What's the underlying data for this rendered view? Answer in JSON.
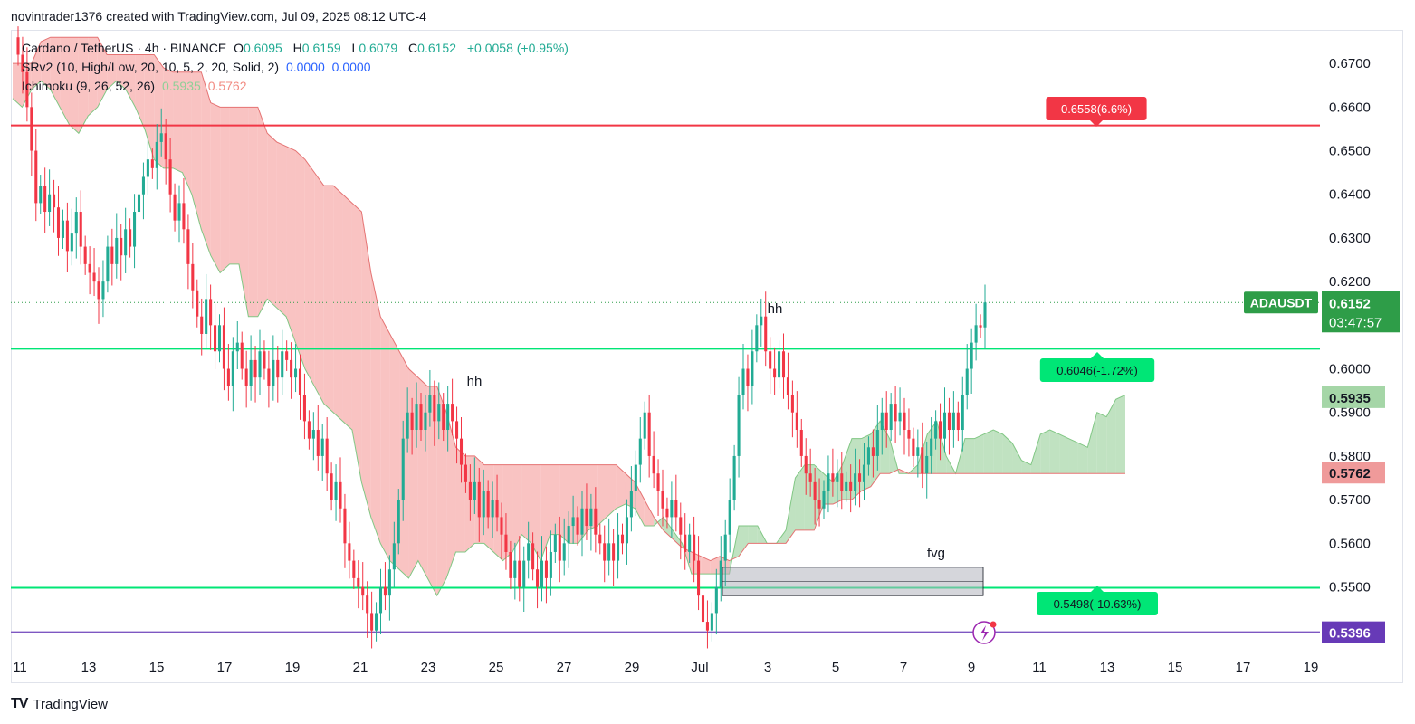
{
  "header": {
    "attribution": "novintrader1376 created with TradingView.com, Jul 09, 2025 08:12 UTC-4"
  },
  "legend": {
    "symbol": "Cardano / TetherUS · 4h · BINANCE",
    "open_label": "O",
    "open": "0.6095",
    "high_label": "H",
    "high": "0.6159",
    "low_label": "L",
    "low": "0.6079",
    "close_label": "C",
    "close": "0.6152",
    "change": "+0.0058 (+0.95%)",
    "srv2_label": "SRv2 (10, High/Low, 20, 10, 5, 2, 20, Solid, 2)",
    "srv2_v1": "0.0000",
    "srv2_v2": "0.0000",
    "ichimoku_label": "Ichimoku (9, 26, 52, 26)",
    "ichimoku_v1": "0.5935",
    "ichimoku_v2": "0.5762"
  },
  "footer": {
    "brand": "TradingView"
  },
  "colors": {
    "up": "#22ab94",
    "down": "#f23645",
    "cloud_bull": "#a5d6a7",
    "cloud_bear": "#f7a9a8",
    "res_line": "#f23645",
    "sup_line": "#00e676",
    "low_line": "#7e57c2",
    "price": "#2e9d48"
  },
  "chart_data": {
    "type": "candlestick",
    "symbol": "ADAUSDT",
    "ylim": [
      0.536,
      0.6775
    ],
    "y_ticks": [
      "0.6700",
      "0.6600",
      "0.6500",
      "0.6400",
      "0.6300",
      "0.6200",
      "0.6000",
      "0.5900",
      "0.5800",
      "0.5700",
      "0.5600",
      "0.5500"
    ],
    "x_ticks": [
      "11",
      "13",
      "15",
      "17",
      "19",
      "21",
      "23",
      "25",
      "27",
      "29",
      "Jul",
      "3",
      "5",
      "7",
      "9",
      "11",
      "13",
      "15",
      "17",
      "19"
    ],
    "horizontal_lines": [
      {
        "value": 0.6558,
        "label": "0.6558(6.6%)",
        "kind": "resistance"
      },
      {
        "value": 0.6046,
        "label": "0.6046(-1.72%)",
        "kind": "support"
      },
      {
        "value": 0.5498,
        "label": "0.5498(-10.63%)",
        "kind": "support"
      },
      {
        "value": 0.5396,
        "label": "0.5396",
        "kind": "low"
      }
    ],
    "price_badge": {
      "symbol": "ADAUSDT",
      "price": "0.6152",
      "countdown": "03:47:57"
    },
    "cloud_badges": {
      "span_a": "0.5935",
      "span_b": "0.5762"
    },
    "annotations": [
      "hh",
      "hh",
      "fvg"
    ],
    "closes": [
      0.672,
      0.668,
      0.66,
      0.65,
      0.638,
      0.642,
      0.636,
      0.64,
      0.637,
      0.63,
      0.634,
      0.627,
      0.631,
      0.636,
      0.628,
      0.624,
      0.622,
      0.62,
      0.616,
      0.62,
      0.628,
      0.624,
      0.63,
      0.626,
      0.632,
      0.628,
      0.636,
      0.64,
      0.644,
      0.648,
      0.646,
      0.652,
      0.654,
      0.648,
      0.64,
      0.634,
      0.638,
      0.632,
      0.624,
      0.618,
      0.612,
      0.608,
      0.616,
      0.61,
      0.604,
      0.61,
      0.6,
      0.596,
      0.604,
      0.606,
      0.6,
      0.596,
      0.602,
      0.598,
      0.604,
      0.6,
      0.596,
      0.602,
      0.598,
      0.604,
      0.602,
      0.598,
      0.6,
      0.594,
      0.588,
      0.584,
      0.586,
      0.58,
      0.584,
      0.576,
      0.57,
      0.574,
      0.568,
      0.56,
      0.556,
      0.552,
      0.55,
      0.548,
      0.544,
      0.54,
      0.544,
      0.55,
      0.548,
      0.554,
      0.56,
      0.57,
      0.584,
      0.59,
      0.586,
      0.592,
      0.586,
      0.59,
      0.594,
      0.588,
      0.592,
      0.586,
      0.592,
      0.588,
      0.584,
      0.578,
      0.574,
      0.57,
      0.574,
      0.566,
      0.572,
      0.566,
      0.57,
      0.566,
      0.562,
      0.558,
      0.552,
      0.556,
      0.55,
      0.556,
      0.56,
      0.554,
      0.55,
      0.556,
      0.552,
      0.558,
      0.562,
      0.556,
      0.56,
      0.564,
      0.566,
      0.562,
      0.568,
      0.564,
      0.568,
      0.562,
      0.56,
      0.556,
      0.56,
      0.556,
      0.562,
      0.56,
      0.566,
      0.572,
      0.578,
      0.584,
      0.59,
      0.58,
      0.576,
      0.572,
      0.568,
      0.566,
      0.57,
      0.566,
      0.562,
      0.558,
      0.562,
      0.556,
      0.548,
      0.542,
      0.54,
      0.544,
      0.55,
      0.556,
      0.562,
      0.57,
      0.58,
      0.594,
      0.6,
      0.596,
      0.604,
      0.61,
      0.612,
      0.604,
      0.6,
      0.598,
      0.604,
      0.598,
      0.594,
      0.59,
      0.586,
      0.58,
      0.576,
      0.574,
      0.57,
      0.568,
      0.572,
      0.576,
      0.574,
      0.576,
      0.572,
      0.574,
      0.572,
      0.576,
      0.574,
      0.578,
      0.582,
      0.58,
      0.586,
      0.59,
      0.586,
      0.592,
      0.588,
      0.59,
      0.586,
      0.584,
      0.58,
      0.582,
      0.576,
      0.58,
      0.584,
      0.588,
      0.584,
      0.59,
      0.586,
      0.59,
      0.586,
      0.594,
      0.6,
      0.606,
      0.61,
      0.6095,
      0.6152
    ],
    "ichimoku_cloud": {
      "span_a": [
        0.662,
        0.66,
        0.664,
        0.666,
        0.664,
        0.66,
        0.656,
        0.654,
        0.658,
        0.66,
        0.664,
        0.666,
        0.664,
        0.66,
        0.655,
        0.648,
        0.646,
        0.646,
        0.645,
        0.64,
        0.632,
        0.626,
        0.622,
        0.624,
        0.624,
        0.612,
        0.612,
        0.616,
        0.614,
        0.612,
        0.606,
        0.6,
        0.596,
        0.592,
        0.59,
        0.588,
        0.586,
        0.574,
        0.566,
        0.56,
        0.556,
        0.554,
        0.552,
        0.556,
        0.552,
        0.548,
        0.552,
        0.558,
        0.558,
        0.56,
        0.56,
        0.558,
        0.556,
        0.558,
        0.562,
        0.56,
        0.556,
        0.562,
        0.562,
        0.56,
        0.56,
        0.563,
        0.564,
        0.566,
        0.568,
        0.569,
        0.568,
        0.564,
        0.564,
        0.566,
        0.563,
        0.56,
        0.553,
        0.553,
        0.553,
        0.553,
        0.553,
        0.564,
        0.564,
        0.564,
        0.56,
        0.56,
        0.563,
        0.575,
        0.578,
        0.578,
        0.576,
        0.574,
        0.578,
        0.584,
        0.584,
        0.585,
        0.588,
        0.584,
        0.576,
        0.576,
        0.578,
        0.585,
        0.588,
        0.58,
        0.576,
        0.584,
        0.584,
        0.585,
        0.586,
        0.585,
        0.583,
        0.579,
        0.578,
        0.585,
        0.586,
        0.585,
        0.584,
        0.583,
        0.582,
        0.59,
        0.589,
        0.593,
        0.594
      ],
      "span_b": [
        0.67,
        0.67,
        0.67,
        0.675,
        0.676,
        0.676,
        0.676,
        0.676,
        0.676,
        0.676,
        0.672,
        0.672,
        0.672,
        0.672,
        0.672,
        0.672,
        0.669,
        0.668,
        0.668,
        0.668,
        0.668,
        0.661,
        0.66,
        0.66,
        0.66,
        0.66,
        0.66,
        0.654,
        0.652,
        0.651,
        0.65,
        0.648,
        0.645,
        0.642,
        0.642,
        0.64,
        0.638,
        0.636,
        0.622,
        0.612,
        0.608,
        0.604,
        0.6,
        0.598,
        0.596,
        0.596,
        0.59,
        0.582,
        0.58,
        0.58,
        0.578,
        0.578,
        0.578,
        0.578,
        0.578,
        0.578,
        0.578,
        0.578,
        0.578,
        0.578,
        0.578,
        0.578,
        0.578,
        0.578,
        0.578,
        0.576,
        0.574,
        0.57,
        0.566,
        0.563,
        0.561,
        0.559,
        0.558,
        0.557,
        0.556,
        0.557,
        0.556,
        0.557,
        0.56,
        0.56,
        0.56,
        0.56,
        0.56,
        0.563,
        0.563,
        0.563,
        0.569,
        0.569,
        0.57,
        0.57,
        0.572,
        0.573,
        0.576,
        0.576,
        0.577,
        0.576,
        0.576,
        0.576,
        0.576,
        0.576,
        0.576,
        0.576,
        0.576,
        0.576,
        0.576,
        0.576,
        0.576,
        0.576,
        0.576,
        0.576,
        0.576,
        0.576,
        0.576,
        0.576,
        0.576,
        0.576,
        0.576,
        0.576,
        0.576
      ]
    }
  }
}
